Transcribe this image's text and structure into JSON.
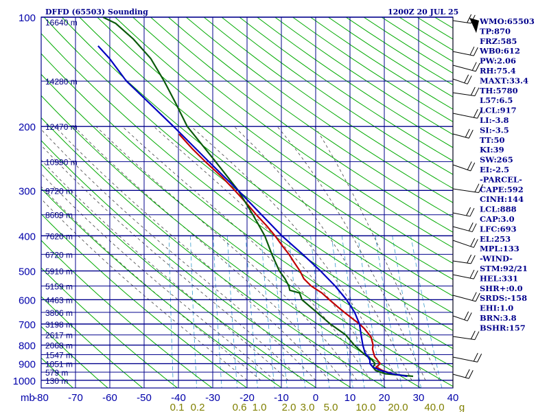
{
  "header": {
    "title": "DFFD (65503) Sounding",
    "datetime": "1200Z 20 JUL 25"
  },
  "chart_data": {
    "type": "skew-t",
    "ylabel": "mb",
    "pressure_ticks": [
      100,
      200,
      300,
      400,
      500,
      600,
      700,
      800,
      900,
      1000
    ],
    "xlim": [
      -80,
      40
    ],
    "temperature_ticks": [
      -80,
      -70,
      -60,
      -50,
      -40,
      -30,
      -20,
      -10,
      0,
      10,
      20,
      30,
      40
    ],
    "height_labels": [
      {
        "p": 103,
        "label": "16640 m"
      },
      {
        "p": 150,
        "label": "14280 m"
      },
      {
        "p": 200,
        "label": "12470 m"
      },
      {
        "p": 250,
        "label": "10990 m"
      },
      {
        "p": 300,
        "label": "9720 m"
      },
      {
        "p": 350,
        "label": "8609 m"
      },
      {
        "p": 400,
        "label": "7620 m"
      },
      {
        "p": 450,
        "label": "6720 m"
      },
      {
        "p": 500,
        "label": "5910 m"
      },
      {
        "p": 550,
        "label": "5159 m"
      },
      {
        "p": 600,
        "label": "4463 m"
      },
      {
        "p": 650,
        "label": "3806 m"
      },
      {
        "p": 700,
        "label": "3198 m"
      },
      {
        "p": 750,
        "label": "2617 m"
      },
      {
        "p": 800,
        "label": "2068 m"
      },
      {
        "p": 850,
        "label": "1547 m"
      },
      {
        "p": 900,
        "label": "1051 m"
      },
      {
        "p": 950,
        "label": "579 m"
      },
      {
        "p": 1000,
        "label": "130 m"
      }
    ],
    "mixing_ratio_labels": [
      "0.1",
      "0.2",
      "0.6",
      "1.0",
      "2.0",
      "3.0",
      "5.0",
      "10.0",
      "20.0",
      "40.0",
      "g"
    ],
    "series": [
      {
        "name": "temperature",
        "color": "#c00000",
        "points": [
          [
            975,
            26.5
          ],
          [
            960,
            22
          ],
          [
            940,
            19
          ],
          [
            920,
            17
          ],
          [
            900,
            18
          ],
          [
            880,
            17
          ],
          [
            860,
            16
          ],
          [
            840,
            15.5
          ],
          [
            820,
            15
          ],
          [
            800,
            15
          ],
          [
            780,
            14.5
          ],
          [
            760,
            14
          ],
          [
            740,
            12.8
          ],
          [
            720,
            11.6
          ],
          [
            700,
            10
          ],
          [
            675,
            7.5
          ],
          [
            650,
            5
          ],
          [
            625,
            2.5
          ],
          [
            600,
            0
          ],
          [
            575,
            -2.5
          ],
          [
            550,
            -6
          ],
          [
            525,
            -8.5
          ],
          [
            500,
            -10
          ],
          [
            475,
            -12
          ],
          [
            450,
            -14
          ],
          [
            425,
            -16.5
          ],
          [
            400,
            -19
          ],
          [
            375,
            -22
          ],
          [
            350,
            -25.5
          ],
          [
            325,
            -29
          ],
          [
            300,
            -33
          ],
          [
            275,
            -37.5
          ],
          [
            250,
            -43
          ],
          [
            230,
            -47.5
          ],
          [
            210,
            -52
          ]
        ]
      },
      {
        "name": "dewpoint",
        "color": "#0a5a0a",
        "points": [
          [
            975,
            28.2
          ],
          [
            960,
            20
          ],
          [
            940,
            17
          ],
          [
            920,
            16
          ],
          [
            900,
            16.5
          ],
          [
            880,
            15.5
          ],
          [
            850,
            13
          ],
          [
            800,
            9.5
          ],
          [
            750,
            6.5
          ],
          [
            700,
            1.5
          ],
          [
            650,
            -3
          ],
          [
            600,
            -8
          ],
          [
            575,
            -9
          ],
          [
            565,
            -12
          ],
          [
            550,
            -12.5
          ],
          [
            525,
            -14
          ],
          [
            500,
            -16
          ],
          [
            450,
            -19
          ],
          [
            400,
            -22
          ],
          [
            350,
            -26.5
          ],
          [
            300,
            -32
          ],
          [
            250,
            -40
          ],
          [
            200,
            -50
          ],
          [
            170,
            -55
          ],
          [
            150,
            -59
          ],
          [
            130,
            -64
          ],
          [
            115,
            -70
          ],
          [
            104,
            -76
          ],
          [
            100,
            -80
          ]
        ]
      },
      {
        "name": "parcel",
        "color": "#0000c0",
        "points": [
          [
            975,
            26.5
          ],
          [
            960,
            22
          ],
          [
            940,
            18.5
          ],
          [
            920,
            16
          ],
          [
            900,
            15
          ],
          [
            880,
            14.8
          ],
          [
            860,
            14
          ],
          [
            840,
            13
          ],
          [
            800,
            12
          ],
          [
            750,
            11
          ],
          [
            700,
            10
          ],
          [
            650,
            8
          ],
          [
            600,
            5
          ],
          [
            550,
            1
          ],
          [
            500,
            -4
          ],
          [
            450,
            -10
          ],
          [
            400,
            -17
          ],
          [
            350,
            -24
          ],
          [
            300,
            -32
          ],
          [
            250,
            -42
          ],
          [
            200,
            -54
          ],
          [
            170,
            -63
          ],
          [
            150,
            -70
          ],
          [
            130,
            -76
          ],
          [
            120,
            -80
          ]
        ]
      }
    ]
  },
  "indices": [
    "WMO:65503",
    "TP:870",
    "FRZ:585",
    "WB0:612",
    "PW:2.06",
    "RH:75.4",
    "MAXT:33.4",
    "TH:5780",
    "L57:6.5",
    "LCL:917",
    "LI:-3.8",
    "SI:-3.5",
    "TT:50",
    "KI:39",
    "SW:265",
    "EI:-2.5",
    "-PARCEL-",
    "CAPE:592",
    "CINH:144",
    "LCL:888",
    "CAP:3.0",
    "LFC:693",
    "EL:253",
    "MPL:133",
    "-WIND-",
    "STM:92/21",
    "HEL:331",
    "SHR+:0.0",
    "SRDS:-158",
    "EHI:1.0",
    "BRN:3.8",
    "BSHR:157"
  ],
  "colors": {
    "grid": "#00008b",
    "dry_adiabat": "#00aa00",
    "moist_adiabat": "#404040",
    "mixing_ratio": "#3399cc",
    "axis_text": "#0000aa",
    "mixing_text": "#808000"
  }
}
